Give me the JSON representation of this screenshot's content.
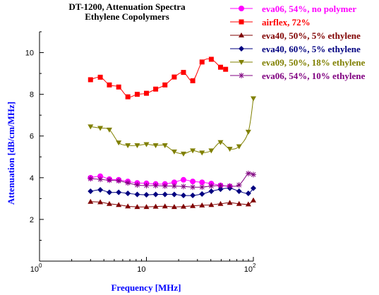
{
  "chart_data": {
    "type": "line",
    "title_lines": [
      "DT-1200, Attenuation Spectra",
      "Ethylene Copolymers"
    ],
    "xlabel": "Frequency [MHz]",
    "ylabel": "Attenuation [dB/cm/MHz]",
    "xscale": "log",
    "xlim": [
      1,
      100
    ],
    "ylim": [
      0,
      11
    ],
    "x_ticks": [
      {
        "base": "10",
        "exp": "0",
        "value": 1
      },
      {
        "base": "10",
        "exp": "",
        "value": 10
      },
      {
        "base": "10",
        "exp": "2",
        "value": 100
      }
    ],
    "y_ticks": [
      {
        "label": "2",
        "value": 2
      },
      {
        "label": "4",
        "value": 4
      },
      {
        "label": "6",
        "value": 6
      },
      {
        "label": "8",
        "value": 8
      },
      {
        "label": "10",
        "value": 10
      }
    ],
    "grid": false,
    "legend_position": "top-right",
    "series": [
      {
        "name": "eva06, 54%, no polymer",
        "color": "#ff00ff",
        "marker": "circle",
        "x": [
          3,
          3.7,
          4.5,
          5.5,
          6.7,
          8.2,
          10,
          12.2,
          14.9,
          18.2,
          22.2,
          27.1,
          33.1,
          40.4,
          49.3,
          60.2,
          73.5,
          89.7,
          100
        ],
        "y": [
          4.0,
          4.07,
          3.93,
          3.9,
          3.82,
          3.75,
          3.73,
          3.7,
          3.7,
          3.78,
          3.9,
          3.82,
          3.78,
          3.72,
          3.63,
          3.58,
          null,
          null,
          null
        ]
      },
      {
        "name": "airflex, 72%",
        "color": "#ff0000",
        "marker": "square",
        "x": [
          3,
          3.7,
          4.5,
          5.5,
          6.7,
          8.2,
          10,
          12.2,
          14.9,
          18.2,
          22.2,
          27.1,
          33.1,
          40.4,
          49.3,
          55
        ],
        "y": [
          8.7,
          8.82,
          8.45,
          8.35,
          7.88,
          8.0,
          8.05,
          8.25,
          8.45,
          8.83,
          9.05,
          8.65,
          9.55,
          9.68,
          9.3,
          9.2
        ]
      },
      {
        "name": "eva40, 50%, 5% ethylene",
        "color": "#800000",
        "marker": "triangle-up",
        "x": [
          3,
          3.7,
          4.5,
          5.5,
          6.7,
          8.2,
          10,
          12.2,
          14.9,
          18.2,
          22.2,
          27.1,
          33.1,
          40.4,
          49.3,
          60.2,
          73.5,
          89.7,
          100
        ],
        "y": [
          2.85,
          2.83,
          2.75,
          2.7,
          2.63,
          2.6,
          2.6,
          2.62,
          2.63,
          2.6,
          2.62,
          2.65,
          2.68,
          2.7,
          2.75,
          2.8,
          2.75,
          2.73,
          2.92
        ]
      },
      {
        "name": "eva40, 60%, 5% ethylene",
        "color": "#000080",
        "marker": "diamond",
        "x": [
          3,
          3.7,
          4.5,
          5.5,
          6.7,
          8.2,
          10,
          12.2,
          14.9,
          18.2,
          22.2,
          27.1,
          33.1,
          40.4,
          49.3,
          60.2,
          73.5,
          89.7,
          100
        ],
        "y": [
          3.35,
          3.42,
          3.3,
          3.3,
          3.25,
          3.2,
          3.18,
          3.2,
          3.2,
          3.2,
          3.15,
          3.15,
          3.22,
          3.35,
          3.45,
          3.5,
          3.35,
          3.25,
          3.5
        ]
      },
      {
        "name": "eva09, 50%, 18% ethylene",
        "color": "#808000",
        "marker": "triangle-down",
        "x": [
          3,
          3.7,
          4.5,
          5.5,
          6.7,
          8.2,
          10,
          12.2,
          14.9,
          18.2,
          22.2,
          27.1,
          33.1,
          40.4,
          49.3,
          60.2,
          73.5,
          89.7,
          100
        ],
        "y": [
          6.45,
          6.38,
          6.3,
          5.68,
          5.55,
          5.55,
          5.6,
          5.55,
          5.55,
          5.25,
          5.15,
          5.3,
          5.2,
          5.3,
          5.7,
          5.38,
          5.5,
          6.2,
          7.8
        ]
      },
      {
        "name": "eva06, 54%, 10% ethylene",
        "color": "#800080",
        "marker": "star",
        "x": [
          3,
          3.7,
          4.5,
          5.5,
          6.7,
          8.2,
          10,
          12.2,
          14.9,
          18.2,
          22.2,
          27.1,
          33.1,
          40.4,
          49.3,
          60.2,
          73.5,
          89.7,
          100
        ],
        "y": [
          3.95,
          3.92,
          3.88,
          3.85,
          3.75,
          3.65,
          3.62,
          3.62,
          3.6,
          3.6,
          3.58,
          3.55,
          3.55,
          3.6,
          3.62,
          3.6,
          3.65,
          4.2,
          4.15
        ]
      }
    ]
  },
  "colors": {
    "axis_title": "#0000ff",
    "axis_line": "#000000",
    "background": "#ffffff"
  }
}
